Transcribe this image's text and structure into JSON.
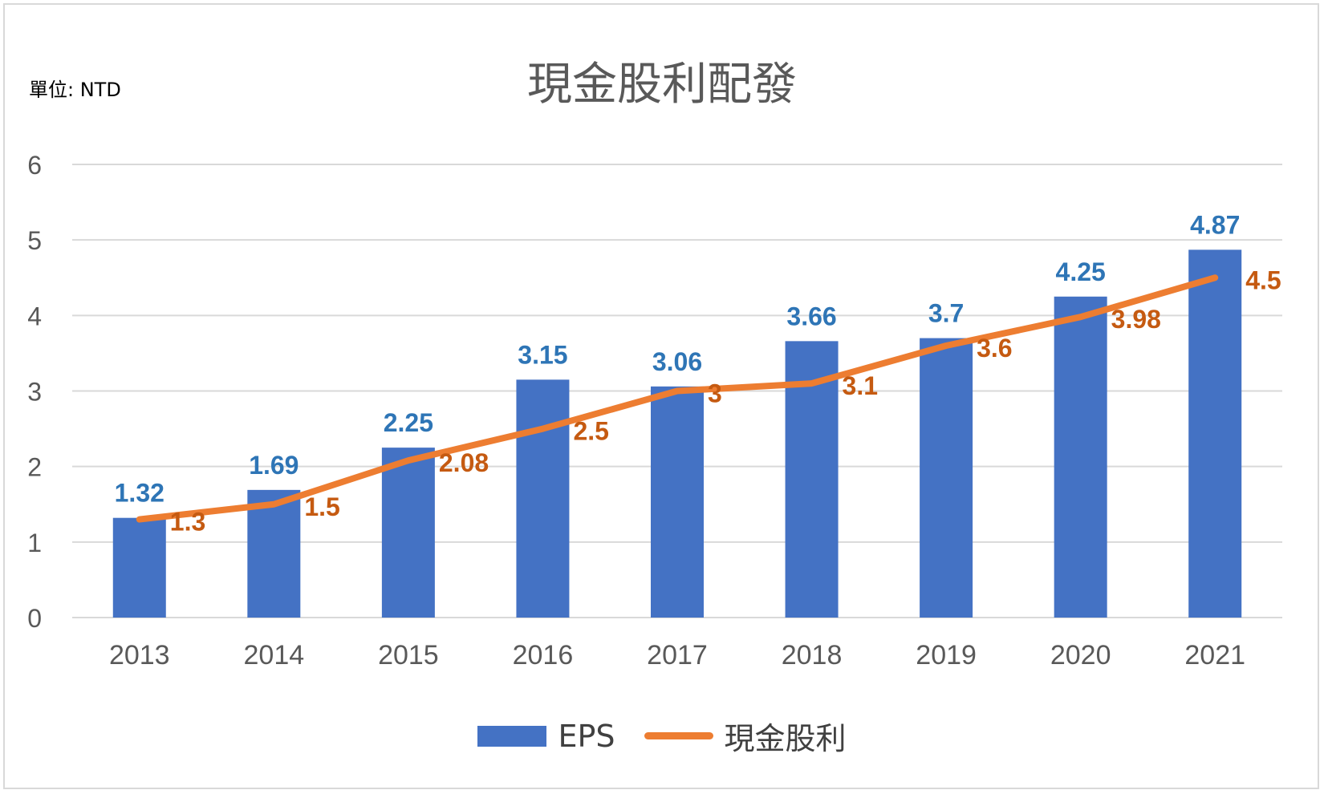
{
  "chart_data": {
    "type": "bar+line",
    "title": "現金股利配發",
    "unit_note": "單位: NTD",
    "categories": [
      "2013",
      "2014",
      "2015",
      "2016",
      "2017",
      "2018",
      "2019",
      "2020",
      "2021"
    ],
    "series": [
      {
        "name": "EPS",
        "type": "bar",
        "color": "#4472c4",
        "label_color": "#2e75b6",
        "values": [
          1.32,
          1.69,
          2.25,
          3.15,
          3.06,
          3.66,
          3.7,
          4.25,
          4.87
        ]
      },
      {
        "name": "現金股利",
        "type": "line",
        "color": "#ed7d31",
        "label_color": "#c55a11",
        "values": [
          1.3,
          1.5,
          2.08,
          2.5,
          3,
          3.1,
          3.6,
          3.98,
          4.5
        ]
      }
    ],
    "ylim": [
      0,
      6
    ],
    "yticks": [
      0,
      1,
      2,
      3,
      4,
      5,
      6
    ],
    "grid": true,
    "legend_position": "bottom"
  }
}
